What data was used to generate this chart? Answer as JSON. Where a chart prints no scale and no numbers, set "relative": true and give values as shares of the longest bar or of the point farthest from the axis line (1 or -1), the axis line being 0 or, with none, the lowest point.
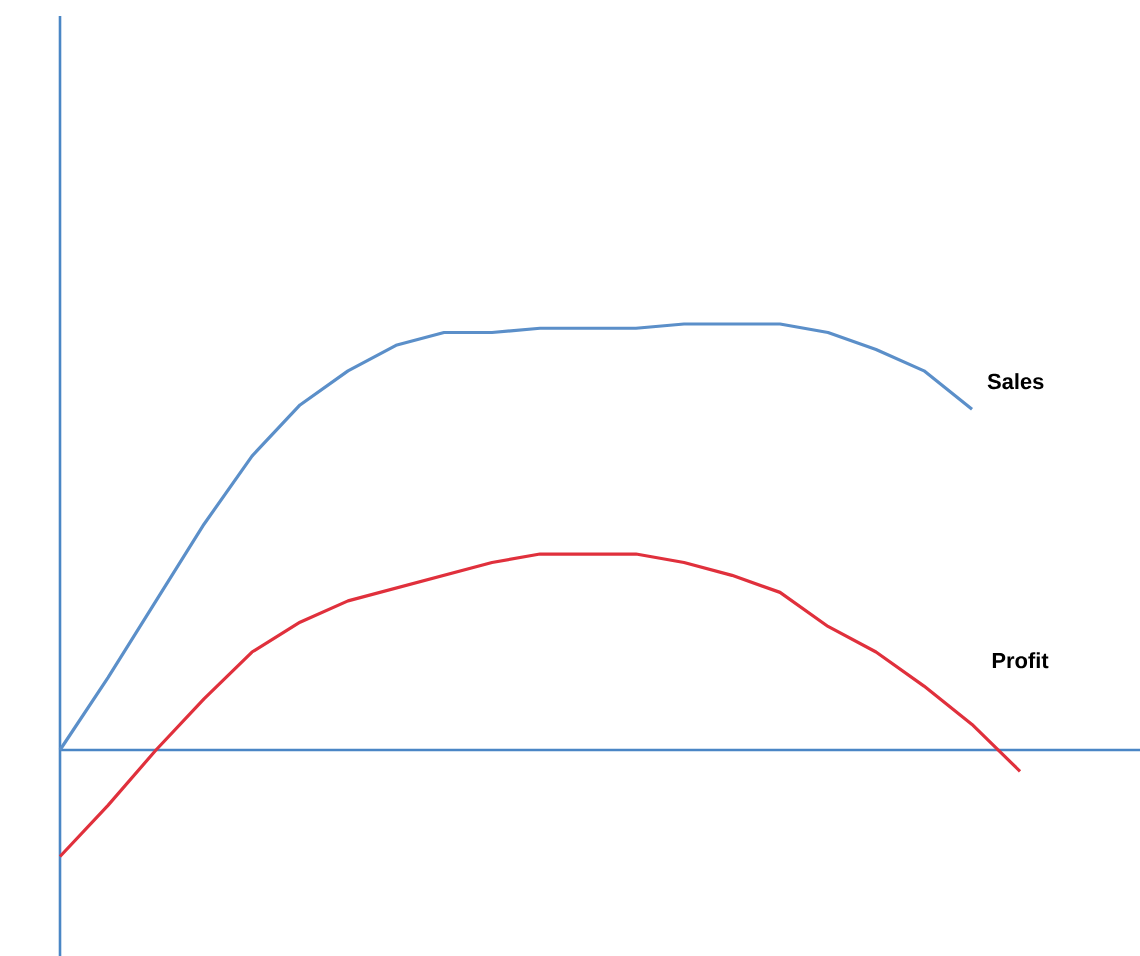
{
  "chart_data": {
    "type": "line",
    "relative": true,
    "ref_lines": [
      {
        "axis": "y",
        "value": 0,
        "color": "#4a86c5"
      }
    ],
    "categories": [
      null,
      null,
      null,
      null,
      null,
      null,
      null,
      null,
      null,
      null,
      null,
      null,
      null,
      null,
      null,
      null,
      null,
      null,
      null,
      null,
      null
    ],
    "series": [
      {
        "name": "Sales",
        "color": "#5b8fc9",
        "values": [
          0,
          0.17,
          0.35,
          0.53,
          0.69,
          0.81,
          0.89,
          0.95,
          0.98,
          0.98,
          0.99,
          0.99,
          0.99,
          1.0,
          1.0,
          1.0,
          0.98,
          0.94,
          0.89,
          0.8,
          null
        ]
      },
      {
        "name": "Profit",
        "color": "#e0303c",
        "values": [
          -0.25,
          -0.13,
          0,
          0.12,
          0.23,
          0.3,
          0.35,
          0.38,
          0.41,
          0.44,
          0.46,
          0.46,
          0.46,
          0.44,
          0.41,
          0.37,
          0.29,
          0.23,
          0.15,
          0.06,
          -0.05
        ]
      }
    ]
  }
}
